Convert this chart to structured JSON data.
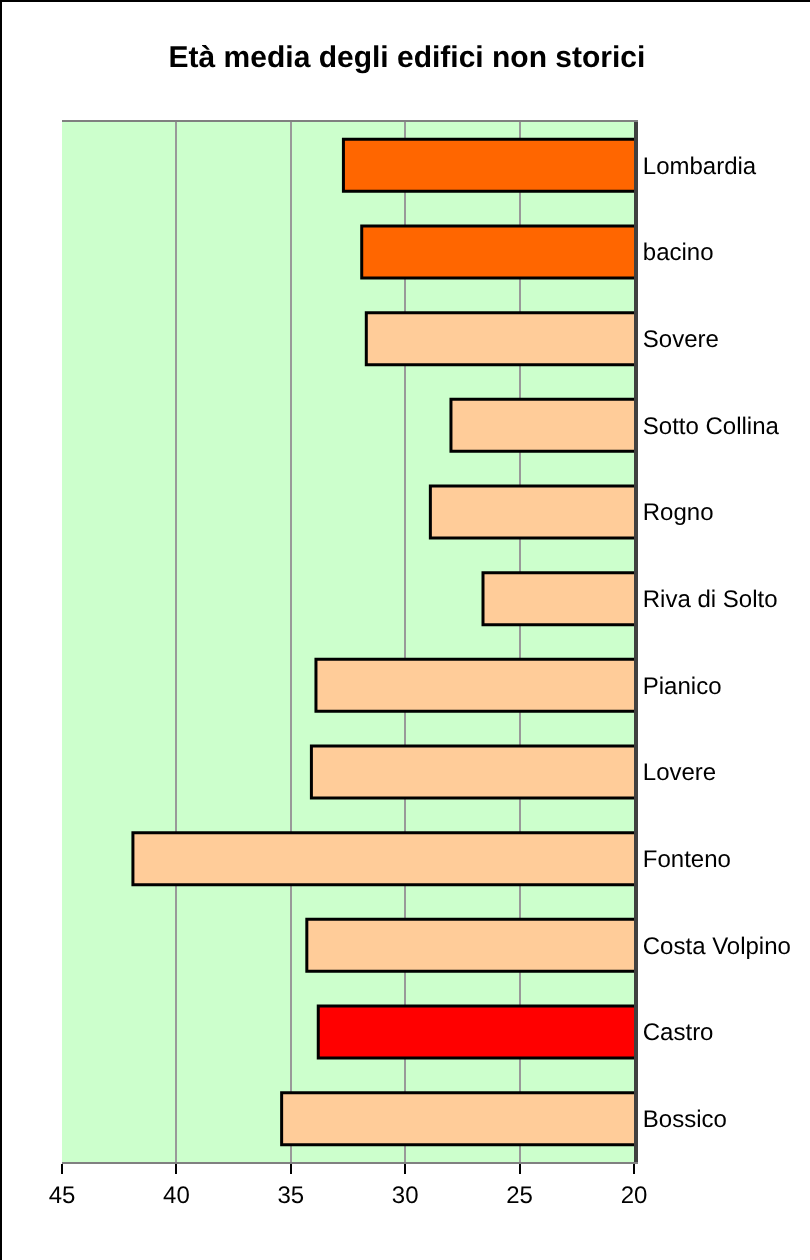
{
  "chart_data": {
    "type": "bar",
    "orientation": "horizontal",
    "title": "Età media degli edifici non storici",
    "categories": [
      "Lombardia",
      "bacino",
      "Sovere",
      "Sotto Collina",
      "Rogno",
      "Riva di Solto",
      "Pianico",
      "Lovere",
      "Fonteno",
      "Costa Volpino",
      "Castro",
      "Bossico"
    ],
    "values": [
      32.7,
      31.9,
      31.7,
      28.0,
      28.9,
      26.6,
      33.9,
      34.1,
      41.9,
      34.3,
      33.8,
      35.4
    ],
    "colors": [
      "#ff6600",
      "#ff6600",
      "#ffcc99",
      "#ffcc99",
      "#ffcc99",
      "#ffcc99",
      "#ffcc99",
      "#ffcc99",
      "#ffcc99",
      "#ffcc99",
      "#ff0000",
      "#ffcc99"
    ],
    "xlim": [
      45,
      20
    ],
    "xticks": [
      45,
      40,
      35,
      30,
      25,
      20
    ],
    "grid": "x"
  }
}
